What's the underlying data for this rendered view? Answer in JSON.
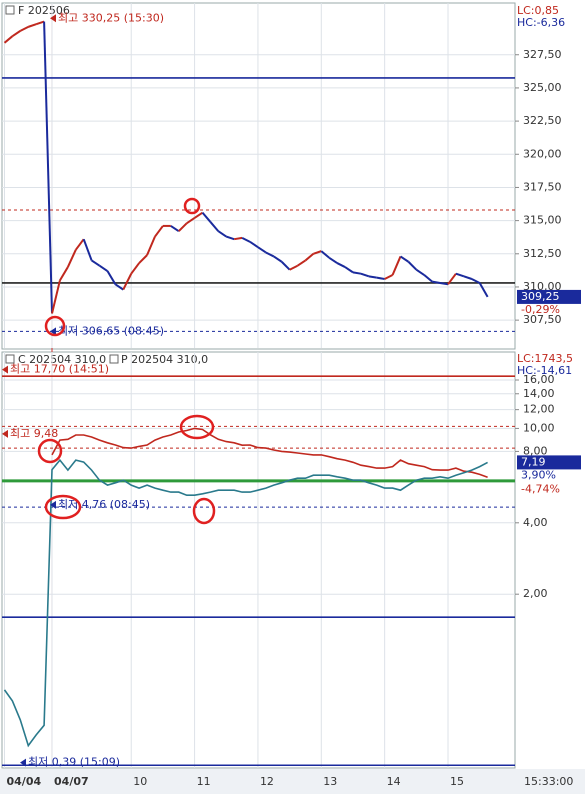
{
  "chart_data": [
    {
      "type": "line",
      "title": "F 202506",
      "lc_label": "LC:0,85",
      "hc_label": "HC:-6,36",
      "values": [
        328.4,
        328.9,
        329.3,
        329.6,
        329.8,
        330.0,
        308.0,
        310.5,
        311.5,
        312.8,
        313.6,
        312.0,
        311.6,
        311.2,
        310.2,
        309.8,
        311.0,
        311.8,
        312.4,
        313.8,
        314.6,
        314.6,
        314.2,
        314.8,
        315.2,
        315.6,
        314.9,
        314.2,
        313.8,
        313.6,
        313.7,
        313.4,
        313.0,
        312.6,
        312.3,
        311.9,
        311.3,
        311.6,
        312.0,
        312.5,
        312.7,
        312.2,
        311.8,
        311.5,
        311.1,
        311.0,
        310.8,
        310.7,
        310.6,
        310.9,
        312.3,
        311.9,
        311.3,
        310.9,
        310.4,
        310.3,
        310.2,
        311.0,
        310.8,
        310.6,
        310.3,
        309.25
      ],
      "up_color": "#c0281e",
      "down_color": "#1a2a9c",
      "ylim": [
        305.4,
        331.4
      ],
      "yticks": [
        {
          "value": 327.5,
          "label": "327,50"
        },
        {
          "value": 325,
          "label": "325,00"
        },
        {
          "value": 322.5,
          "label": "322,50"
        },
        {
          "value": 320,
          "label": "320,00"
        },
        {
          "value": 317.5,
          "label": "317,50"
        },
        {
          "value": 315,
          "label": "315,00"
        },
        {
          "value": 312.5,
          "label": "312,50"
        },
        {
          "value": 310,
          "label": "310,00"
        },
        {
          "value": 307.5,
          "label": "307,50"
        }
      ],
      "grid": true,
      "hlines": [
        {
          "value": 325.75,
          "color": "#1a2a9c",
          "dashed": false
        },
        {
          "value": 315.8,
          "color": "#c0281e",
          "dashed": true
        },
        {
          "value": 310.3,
          "color": "#222222",
          "dashed": false
        },
        {
          "value": 306.65,
          "color": "#1a2a9c",
          "dashed": true
        }
      ],
      "annotations": [
        {
          "value": 330.25,
          "label": "최고 330,25 (15:30)",
          "color": "#c0281e"
        },
        {
          "value": 306.65,
          "label": "최저 306,65 (08:45)",
          "color": "#1a2a9c"
        }
      ],
      "last_label": "309,25",
      "change_labels": [
        "-0,29%"
      ]
    },
    {
      "type": "line",
      "lc_label": "LC:1743,5",
      "hc_label": "HC:-14,61",
      "log": true,
      "categories": [
        "04/04",
        null,
        null,
        null,
        null,
        null,
        "04/07",
        null,
        null,
        null,
        null,
        null,
        null,
        null,
        null,
        null,
        "10",
        null,
        null,
        null,
        null,
        null,
        null,
        null,
        "11",
        null,
        null,
        null,
        null,
        null,
        null,
        null,
        "12",
        null,
        null,
        null,
        null,
        null,
        null,
        null,
        "13",
        null,
        null,
        null,
        null,
        null,
        null,
        null,
        "14",
        null,
        null,
        null,
        null,
        null,
        null,
        null,
        "15",
        null,
        null,
        null,
        null,
        null
      ],
      "series": [
        {
          "name": "C 202504 310,0",
          "color": "#c0281e",
          "values": [
            null,
            null,
            null,
            null,
            null,
            null,
            7.73,
            8.93,
            9.0,
            9.38,
            9.38,
            9.2,
            8.93,
            8.7,
            8.51,
            8.3,
            8.26,
            8.4,
            8.51,
            8.93,
            9.2,
            9.38,
            9.66,
            9.8,
            10.0,
            9.9,
            9.4,
            9.0,
            8.8,
            8.7,
            8.5,
            8.51,
            8.3,
            8.26,
            8.11,
            8.0,
            7.95,
            7.88,
            7.8,
            7.73,
            7.73,
            7.6,
            7.45,
            7.35,
            7.2,
            7.0,
            6.9,
            6.8,
            6.8,
            6.9,
            7.35,
            7.1,
            7.0,
            6.9,
            6.7,
            6.67,
            6.67,
            6.8,
            6.6,
            6.54,
            6.4,
            6.23
          ]
        },
        {
          "name": "P 202504 310,0",
          "color": "#2a7a8c",
          "values": [
            0.79,
            0.71,
            0.59,
            0.46,
            0.51,
            0.56,
            6.7,
            7.35,
            6.67,
            7.35,
            7.21,
            6.67,
            6.05,
            5.77,
            5.9,
            6.05,
            5.77,
            5.6,
            5.77,
            5.6,
            5.49,
            5.39,
            5.39,
            5.23,
            5.23,
            5.3,
            5.39,
            5.49,
            5.49,
            5.49,
            5.39,
            5.39,
            5.49,
            5.6,
            5.77,
            5.9,
            6.05,
            6.17,
            6.17,
            6.35,
            6.35,
            6.35,
            6.25,
            6.17,
            6.05,
            6.05,
            5.9,
            5.77,
            5.6,
            5.6,
            5.49,
            5.77,
            6.05,
            6.17,
            6.17,
            6.25,
            6.17,
            6.35,
            6.5,
            6.67,
            6.9,
            7.19
          ]
        }
      ],
      "ylim": [
        0.37,
        21
      ],
      "yticks": [
        {
          "value": 16,
          "label": "16,00"
        },
        {
          "value": 14,
          "label": "14,00"
        },
        {
          "value": 12,
          "label": "12,00"
        },
        {
          "value": 10,
          "label": "10,00"
        },
        {
          "value": 8,
          "label": "8,00"
        },
        {
          "value": 4,
          "label": "4,00"
        },
        {
          "value": 2,
          "label": "2,00"
        }
      ],
      "grid": true,
      "hlines": [
        {
          "value": 16.6,
          "color": "#c0281e",
          "dashed": false
        },
        {
          "value": 10.2,
          "color": "#c0281e",
          "dashed": true
        },
        {
          "value": 8.26,
          "color": "#c0281e",
          "dashed": true
        },
        {
          "value": 6.05,
          "color": "#2e9a3a",
          "dashed": false
        },
        {
          "value": 5.97,
          "color": "#2e9a3a",
          "dashed": false
        },
        {
          "value": 4.66,
          "color": "#1a2a9c",
          "dashed": true
        },
        {
          "value": 1.6,
          "color": "#1a2a9c",
          "dashed": false
        },
        {
          "value": 0.38,
          "color": "#1a2a9c",
          "dashed": false
        }
      ],
      "annotations": [
        {
          "value": 17.7,
          "label": "최고 17,70 (14:51)",
          "color": "#c0281e"
        },
        {
          "value": 9.48,
          "label": "최고 9,48",
          "color": "#c0281e"
        },
        {
          "value": 4.76,
          "label": "최저 4,76 (08:45)",
          "color": "#1a2a9c"
        },
        {
          "value": 0.39,
          "label": "최저 0,39 (15:09)",
          "color": "#1a2a9c"
        }
      ],
      "last_label": "7,19",
      "change_labels": [
        "3,90%",
        "-4,74%"
      ],
      "time_label": "15:33:00"
    }
  ]
}
